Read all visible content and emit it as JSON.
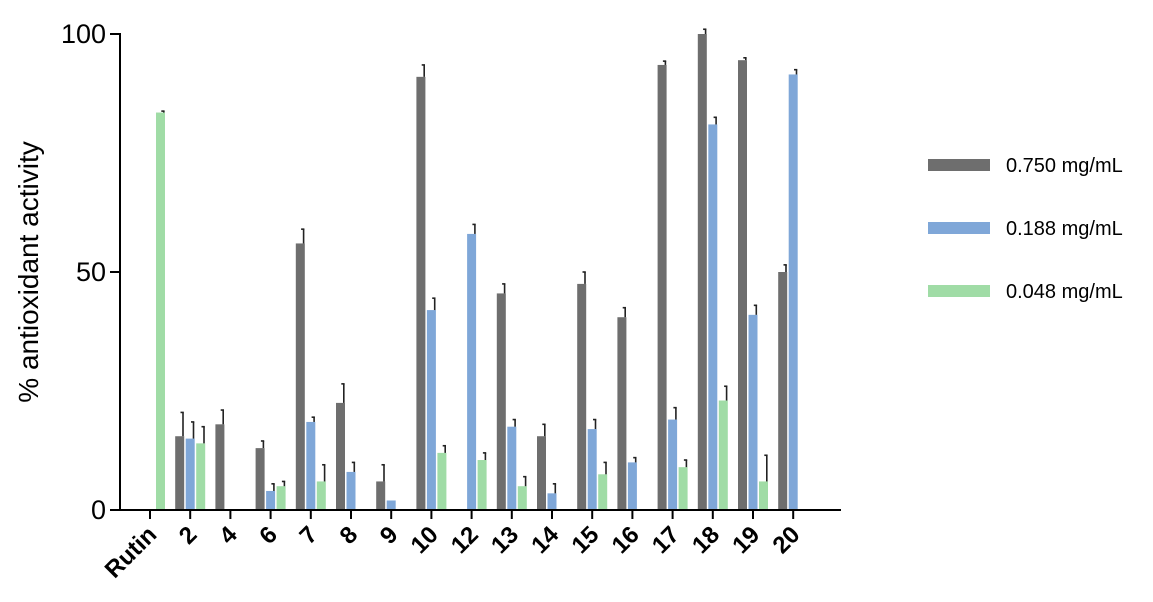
{
  "chart_data": {
    "type": "bar",
    "ylabel": "% antioxidant activity",
    "xlabel": "",
    "ylim": [
      0,
      100
    ],
    "yticks": [
      0,
      50,
      100
    ],
    "legend_position": "right",
    "categories": [
      "Rutin",
      "2",
      "4",
      "6",
      "7",
      "8",
      "9",
      "10",
      "12",
      "13",
      "14",
      "15",
      "16",
      "17",
      "18",
      "19",
      "20"
    ],
    "series": [
      {
        "name": "0.750 mg/mL",
        "color": "#6e6e6e",
        "values": [
          0,
          15.5,
          18,
          13,
          56,
          22.5,
          6,
          91,
          0,
          45.5,
          15.5,
          47.5,
          40.5,
          93.5,
          100,
          94.5,
          50
        ],
        "errors": [
          0,
          5,
          3,
          1.5,
          3,
          4,
          3.5,
          2.5,
          0,
          2,
          2.5,
          2.5,
          2,
          0.8,
          1,
          0.5,
          1.5
        ]
      },
      {
        "name": "0.188 mg/mL",
        "color": "#7fa7d8",
        "values": [
          0,
          15,
          0,
          4,
          18.5,
          8,
          2,
          42,
          58,
          17.5,
          3.5,
          17,
          10,
          19,
          81,
          41,
          91.5
        ],
        "errors": [
          0,
          3.5,
          0,
          1.5,
          1,
          2,
          0,
          2.5,
          2,
          1.5,
          2,
          2,
          1,
          2.5,
          1.5,
          2,
          1
        ]
      },
      {
        "name": "0.048 mg/mL",
        "color": "#a0dca6",
        "values": [
          83.5,
          14,
          0,
          5,
          6,
          0,
          0,
          12,
          10.5,
          5,
          0,
          7.5,
          0,
          9,
          23,
          6,
          0
        ],
        "errors": [
          0.3,
          3.5,
          0,
          1,
          3.5,
          0,
          0,
          1.5,
          1.5,
          2,
          0,
          2.5,
          0,
          1.5,
          3,
          5.5,
          0
        ]
      }
    ]
  }
}
